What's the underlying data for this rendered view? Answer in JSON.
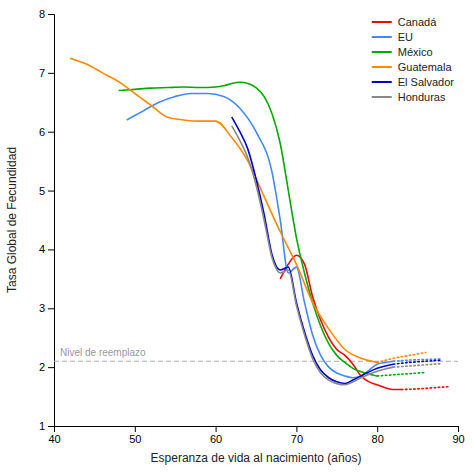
{
  "chart_data": {
    "type": "line",
    "xlabel": "Esperanza de vida al nacimiento (años)",
    "ylabel": "Tasa Global de Fecundidad",
    "xlim": [
      40,
      90
    ],
    "ylim": [
      1,
      8
    ],
    "xticks": [
      40,
      50,
      60,
      70,
      80,
      90
    ],
    "yticks": [
      1,
      2,
      3,
      4,
      5,
      6,
      7,
      8
    ],
    "grid": false,
    "legend": "upper right",
    "series": [
      {
        "name": "Canadá",
        "color": "#ff0000",
        "line_style": "solid",
        "x": [
          68,
          69,
          70,
          71,
          72,
          73,
          74,
          75,
          76,
          77,
          78,
          79,
          80,
          81,
          82,
          83
        ],
        "values": [
          3.5,
          3.75,
          3.9,
          3.75,
          3.2,
          2.8,
          2.5,
          2.3,
          2.2,
          2.05,
          1.85,
          1.75,
          1.7,
          1.65,
          1.62,
          1.62
        ]
      },
      {
        "color": "#ff0000",
        "line_style": "dotted",
        "x": [
          83,
          85,
          87,
          89
        ],
        "values": [
          1.62,
          1.63,
          1.65,
          1.67
        ]
      },
      {
        "name": "EU",
        "color": "#4488ff",
        "line_style": "solid",
        "x": [
          49,
          51,
          53,
          55,
          57,
          59,
          61,
          63,
          65,
          67,
          68,
          69,
          70,
          71,
          72,
          73,
          74,
          75,
          76,
          77,
          78,
          79,
          80,
          81,
          82
        ],
        "values": [
          6.2,
          6.35,
          6.5,
          6.6,
          6.65,
          6.65,
          6.6,
          6.4,
          6.0,
          5.3,
          4.5,
          3.6,
          3.7,
          3.1,
          2.55,
          2.2,
          2.0,
          1.9,
          1.85,
          1.82,
          1.85,
          1.95,
          2.05,
          2.08,
          2.1
        ]
      },
      {
        "color": "#4488ff",
        "line_style": "dotted",
        "x": [
          82,
          84,
          86,
          88
        ],
        "values": [
          2.1,
          2.12,
          2.13,
          2.14
        ]
      },
      {
        "name": "México",
        "color": "#00aa00",
        "line_style": "solid",
        "x": [
          48,
          50,
          52,
          54,
          56,
          58,
          60,
          61,
          62,
          63,
          64,
          65,
          66,
          67,
          68,
          69,
          70,
          71,
          72,
          73,
          74,
          75,
          76,
          77,
          78,
          79,
          80
        ],
        "values": [
          6.7,
          6.72,
          6.74,
          6.75,
          6.76,
          6.75,
          6.76,
          6.78,
          6.82,
          6.84,
          6.82,
          6.75,
          6.6,
          6.3,
          5.8,
          5.0,
          4.2,
          3.6,
          3.1,
          2.7,
          2.4,
          2.2,
          2.08,
          1.98,
          1.92,
          1.88,
          1.85
        ]
      },
      {
        "color": "#00aa00",
        "line_style": "dotted",
        "x": [
          80,
          82,
          84,
          86
        ],
        "values": [
          1.85,
          1.87,
          1.89,
          1.91
        ]
      },
      {
        "name": "Guatemala",
        "color": "#ff8800",
        "line_style": "solid",
        "x": [
          42,
          44,
          46,
          48,
          50,
          52,
          54,
          56,
          58,
          60,
          62,
          64,
          66,
          68,
          70,
          72,
          74,
          76,
          78,
          80
        ],
        "values": [
          7.25,
          7.15,
          7.0,
          6.85,
          6.65,
          6.45,
          6.25,
          6.2,
          6.18,
          6.18,
          5.9,
          5.5,
          4.9,
          4.3,
          3.75,
          3.1,
          2.65,
          2.3,
          2.15,
          2.08
        ]
      },
      {
        "color": "#ff8800",
        "line_style": "dotted",
        "x": [
          80,
          82,
          84,
          86
        ],
        "values": [
          2.08,
          2.15,
          2.2,
          2.25
        ]
      },
      {
        "name": "El Salvador",
        "color": "#0000cc",
        "line_style": "solid",
        "x": [
          62,
          63,
          64,
          65,
          66,
          67,
          68,
          69,
          70,
          71,
          72,
          73,
          74,
          75,
          76,
          77,
          78,
          79,
          80,
          81,
          82
        ],
        "values": [
          6.25,
          6.0,
          5.7,
          5.2,
          4.6,
          3.9,
          3.65,
          3.7,
          3.1,
          2.6,
          2.2,
          1.95,
          1.82,
          1.75,
          1.72,
          1.78,
          1.85,
          1.92,
          1.98,
          2.02,
          2.05
        ]
      },
      {
        "color": "#0000cc",
        "line_style": "dotted",
        "x": [
          82,
          84,
          86,
          88
        ],
        "values": [
          2.05,
          2.08,
          2.1,
          2.12
        ]
      },
      {
        "name": "Honduras",
        "color": "#888888",
        "line_style": "solid",
        "x": [
          62,
          63,
          64,
          65,
          66,
          67,
          68,
          69,
          70,
          71,
          72,
          73,
          74,
          75,
          76,
          77,
          78,
          79,
          80,
          81,
          82
        ],
        "values": [
          6.1,
          5.85,
          5.55,
          5.1,
          4.5,
          3.85,
          3.6,
          3.65,
          3.05,
          2.55,
          2.15,
          1.9,
          1.78,
          1.72,
          1.7,
          1.75,
          1.82,
          1.88,
          1.93,
          1.97,
          2.0
        ]
      },
      {
        "color": "#888888",
        "line_style": "dotted",
        "x": [
          82,
          84,
          86,
          88
        ],
        "values": [
          2.0,
          2.02,
          2.04,
          2.06
        ]
      }
    ],
    "annotations": [
      {
        "type": "hline",
        "y": 2.1,
        "text": "Nivel de reemplazo",
        "color": "#aaaaaa",
        "line_style": "dashed"
      }
    ]
  }
}
